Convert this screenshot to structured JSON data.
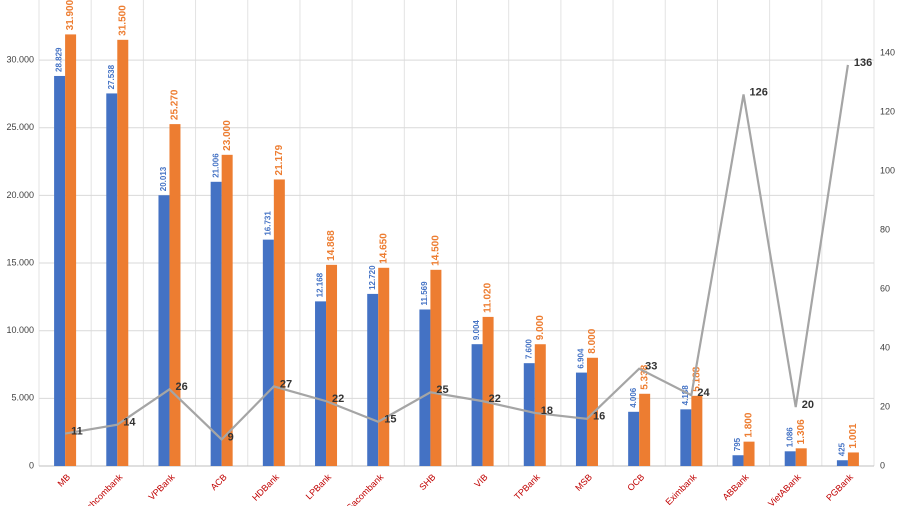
{
  "chart_data": {
    "type": "bar",
    "categories": [
      "MB",
      "Techcombank",
      "VPBank",
      "ACB",
      "HDBank",
      "LPBank",
      "Sacombank",
      "SHB",
      "VIB",
      "TPBank",
      "MSB",
      "OCB",
      "Eximbank",
      "ABBank",
      "VietABank",
      "PGBank"
    ],
    "series": [
      {
        "color": "#4472c4",
        "values": [
          28829,
          27538,
          20013,
          21006,
          16731,
          12168,
          12720,
          11569,
          9004,
          7600,
          6904,
          4006,
          4188,
          795,
          1086,
          425
        ],
        "value_labels": [
          "28.829",
          "27.538",
          "20.013",
          "21.006",
          "16.731",
          "12.168",
          "12.720",
          "11.569",
          "9.004",
          "7.600",
          "6.904",
          "4.006",
          "4.188",
          "795",
          "1.086",
          "425"
        ]
      },
      {
        "color": "#ed7d31",
        "values": [
          31900,
          31500,
          25270,
          23000,
          21179,
          14868,
          14650,
          14500,
          11020,
          9000,
          8000,
          5338,
          5188,
          1800,
          1306,
          1001
        ],
        "value_labels": [
          "31.900",
          "31.500",
          "25.270",
          "23.000",
          "21.179",
          "14.868",
          "14.650",
          "14.500",
          "11.020",
          "9.000",
          "8.000",
          "5.338",
          "5.188",
          "1.800",
          "1.306",
          "1.001"
        ]
      },
      {
        "type": "line",
        "axis": "y2",
        "color": "#a5a5a5",
        "values": [
          11,
          14,
          26,
          9,
          27,
          22,
          15,
          25,
          22,
          18,
          16,
          33,
          24,
          126,
          20,
          136
        ]
      }
    ],
    "ylim": [
      0,
      34000
    ],
    "yticks": [
      0,
      {
        "value": 5000,
        "label": "5.000"
      },
      {
        "value": 10000,
        "label": "10.000"
      },
      {
        "value": 15000,
        "label": "15.000"
      },
      {
        "value": 20000,
        "label": "20.000"
      },
      {
        "value": 25000,
        "label": "25.000"
      },
      {
        "value": 30000,
        "label": "30.000"
      }
    ],
    "y2lim": [
      0,
      156
    ],
    "y2ticks": [
      0,
      20,
      40,
      60,
      80,
      100,
      120,
      140
    ],
    "grid": true
  }
}
